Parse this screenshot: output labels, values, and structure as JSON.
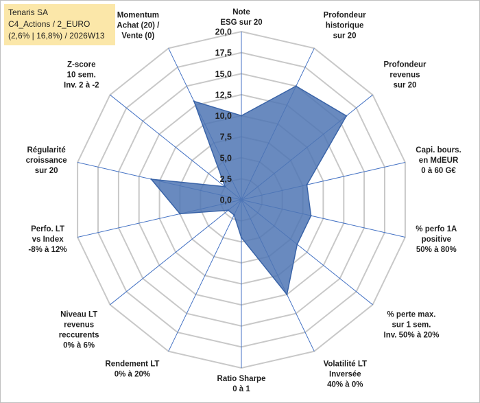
{
  "info": {
    "name": "Tenaris SA",
    "category": "C4_Actions / 2_EURO",
    "stats": "(2,6% | 16,8%) / 2026W13"
  },
  "colors": {
    "grid": "#c8c8c8",
    "spoke": "#4472c4",
    "fill": "#4f76b4",
    "stroke": "#3a64a8",
    "info_bg": "#fbe7a9"
  },
  "chart_data": {
    "type": "radar",
    "rmin": 0,
    "rmax": 20,
    "step": 2.5,
    "tick_labels": [
      "0,0",
      "2,5",
      "5,0",
      "7,5",
      "10,0",
      "12,5",
      "15,0",
      "17,5",
      "20,0"
    ],
    "axes": [
      {
        "label": [
          "Note",
          "ESG sur 20"
        ],
        "value": 10
      },
      {
        "label": [
          "Profondeur",
          "historique",
          "sur 20"
        ],
        "value": 15
      },
      {
        "label": [
          "Profondeur",
          "revenus",
          "sur 20"
        ],
        "value": 16
      },
      {
        "label": [
          "Capi. bours.",
          "en MdEUR",
          "0 à 60 G€"
        ],
        "value": 8
      },
      {
        "label": [
          "% perfo 1A",
          "positive",
          "50% à 80%"
        ],
        "value": 8.5
      },
      {
        "label": [
          "% perte max.",
          "sur 1 sem.",
          "Inv. 50% à 20%"
        ],
        "value": 8.5
      },
      {
        "label": [
          "Volatilité LT",
          "Inversée",
          "40% à 0%"
        ],
        "value": 12.5
      },
      {
        "label": [
          "Ratio Sharpe",
          "0 à 1"
        ],
        "value": 4.5
      },
      {
        "label": [
          "Rendement LT",
          "0% à 20%"
        ],
        "value": 2
      },
      {
        "label": [
          "Niveau LT",
          "revenus",
          "reccurents",
          "0% à 6%"
        ],
        "value": 2
      },
      {
        "label": [
          "Perfo. LT",
          "vs Index",
          "-8% à 12%"
        ],
        "value": 7.5
      },
      {
        "label": [
          "Régularité",
          "croissance",
          "sur 20"
        ],
        "value": 11
      },
      {
        "label": [
          "Z-score",
          "10 sem.",
          "Inv. 2 à -2"
        ],
        "value": 2.5
      },
      {
        "label": [
          "Momentum",
          "Achat (20) /",
          "Vente (0)"
        ],
        "value": 13
      }
    ]
  }
}
